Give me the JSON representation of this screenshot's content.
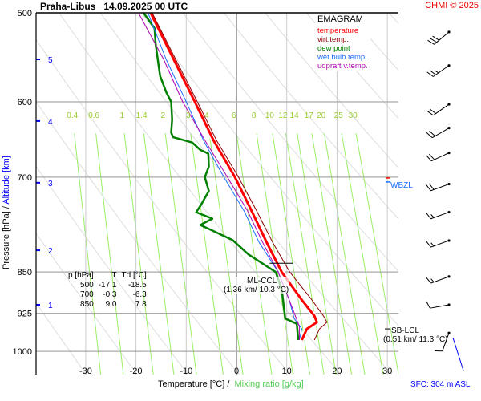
{
  "header": {
    "station": "Praha-Libus",
    "datetime": "14.09.2025 00 UTC",
    "credit": "CHMI © 2025"
  },
  "legend": {
    "title": "EMAGRAM",
    "items": [
      {
        "label": "temperature",
        "color": "#ff0000"
      },
      {
        "label": "virt.temp.",
        "color": "#8b0000"
      },
      {
        "label": "dew point",
        "color": "#008000"
      },
      {
        "label": "wet bulb temp.",
        "color": "#1e6fff"
      },
      {
        "label": "udpraft v.temp.",
        "color": "#b000b0"
      }
    ]
  },
  "axes": {
    "ylabel_pressure": "Pressure [hPa]",
    "ylabel_sep": " / ",
    "ylabel_altitude": "Altitude [km]",
    "xlabel_temp": "Temperature [°C]",
    "xlabel_sep": " / ",
    "xlabel_mix": "Mixing ratio [g/kg]",
    "surface": "SFC: 304 m ASL"
  },
  "table": {
    "headers": [
      "p [hPa]",
      "T",
      "Td [°C]"
    ],
    "rows": [
      [
        "500",
        "-17.1",
        "-18.5"
      ],
      [
        "700",
        "-0.3",
        "-6.3"
      ],
      [
        "850",
        "9.0",
        "7.8"
      ]
    ]
  },
  "annotations": {
    "ml_ccl": "ML-CCL",
    "ml_ccl_val": "(1.36 km/ 10.3 °C)",
    "sb_lcl": "SB-LCL",
    "sb_lcl_val": "(0.51 km/ 11.3 °C)",
    "wbzl": "WBZL"
  },
  "chart_data": {
    "type": "line",
    "title": "EMAGRAM",
    "xlabel": "Temperature [°C] / Mixing ratio [g/kg]",
    "ylabel": "Pressure [hPa] / Altitude [km]",
    "xlim": [
      -40,
      32
    ],
    "ylim": [
      1049,
      500
    ],
    "y_scale": "log",
    "grid": true,
    "x_ticks": [
      -30,
      -20,
      -10,
      0,
      10,
      20,
      30
    ],
    "y_ticks": [
      500,
      600,
      700,
      850,
      925,
      1000
    ],
    "altitude_ticks_km": [
      {
        "km": "1",
        "p": 909
      },
      {
        "km": "2",
        "p": 813
      },
      {
        "km": "3",
        "p": 708
      },
      {
        "km": "4",
        "p": 624
      },
      {
        "km": "5",
        "p": 550
      }
    ],
    "mixing_ratio_labels": [
      "0.4",
      "0.6",
      "1",
      "1.4",
      "2",
      "3",
      "4",
      "6",
      "8",
      "10",
      "12",
      "14",
      "17",
      "20",
      "25",
      "30"
    ],
    "series": [
      {
        "name": "temperature",
        "color": "#ff0000",
        "points": [
          [
            500,
            -17.1
          ],
          [
            550,
            -12.5
          ],
          [
            600,
            -8.3
          ],
          [
            650,
            -4.5
          ],
          [
            700,
            -0.3
          ],
          [
            750,
            3.0
          ],
          [
            800,
            6.0
          ],
          [
            850,
            9.0
          ],
          [
            900,
            13.0
          ],
          [
            930,
            15.5
          ],
          [
            942,
            16.0
          ],
          [
            955,
            14.0
          ],
          [
            977,
            13.0
          ]
        ]
      },
      {
        "name": "virt.temp.",
        "color": "#8b0000",
        "points": [
          [
            500,
            -16.8
          ],
          [
            550,
            -12.1
          ],
          [
            600,
            -7.8
          ],
          [
            650,
            -3.9
          ],
          [
            700,
            0.4
          ],
          [
            750,
            4.0
          ],
          [
            800,
            7.2
          ],
          [
            850,
            10.6
          ],
          [
            900,
            15.0
          ],
          [
            930,
            17.3
          ],
          [
            942,
            18.0
          ],
          [
            955,
            16.5
          ],
          [
            977,
            15.5
          ]
        ]
      },
      {
        "name": "dew point",
        "color": "#008000",
        "points": [
          [
            500,
            -18.5
          ],
          [
            516,
            -16.3
          ],
          [
            533,
            -16.1
          ],
          [
            569,
            -15.2
          ],
          [
            588,
            -14.0
          ],
          [
            600,
            -13.0
          ],
          [
            622,
            -12.8
          ],
          [
            639,
            -13.0
          ],
          [
            645,
            -12.6
          ],
          [
            652,
            -8.8
          ],
          [
            662,
            -7.2
          ],
          [
            667,
            -5.6
          ],
          [
            685,
            -5.5
          ],
          [
            700,
            -6.3
          ],
          [
            720,
            -5.5
          ],
          [
            740,
            -7.0
          ],
          [
            752,
            -8.0
          ],
          [
            762,
            -4.8
          ],
          [
            772,
            -7.2
          ],
          [
            796,
            -0.8
          ],
          [
            820,
            2.4
          ],
          [
            850,
            7.8
          ],
          [
            880,
            9.0
          ],
          [
            935,
            9.7
          ],
          [
            945,
            12.0
          ],
          [
            977,
            12.3
          ]
        ]
      },
      {
        "name": "wet bulb temp.",
        "color": "#1e6fff",
        "points": [
          [
            500,
            -17.6
          ],
          [
            550,
            -14.0
          ],
          [
            600,
            -10.0
          ],
          [
            650,
            -6.5
          ],
          [
            700,
            -2.5
          ],
          [
            750,
            1.5
          ],
          [
            800,
            4.5
          ],
          [
            850,
            8.3
          ],
          [
            900,
            10.5
          ],
          [
            935,
            11.5
          ],
          [
            955,
            13.0
          ],
          [
            977,
            12.5
          ]
        ]
      },
      {
        "name": "udpraft v.temp.",
        "color": "#b000b0",
        "points": [
          [
            500,
            -19.5
          ],
          [
            550,
            -14.5
          ],
          [
            600,
            -10.7
          ],
          [
            650,
            -6.2
          ],
          [
            700,
            -1.8
          ],
          [
            750,
            2.2
          ],
          [
            800,
            5.2
          ],
          [
            850,
            8.3
          ],
          [
            900,
            10.5
          ],
          [
            950,
            12.5
          ],
          [
            977,
            12.5
          ]
        ]
      }
    ],
    "wind_barbs": [
      {
        "p": 520,
        "dir": 230,
        "kt": 30
      },
      {
        "p": 557,
        "dir": 235,
        "kt": 25
      },
      {
        "p": 603,
        "dir": 235,
        "kt": 20
      },
      {
        "p": 633,
        "dir": 240,
        "kt": 20
      },
      {
        "p": 666,
        "dir": 245,
        "kt": 20
      },
      {
        "p": 710,
        "dir": 250,
        "kt": 20
      },
      {
        "p": 752,
        "dir": 250,
        "kt": 15
      },
      {
        "p": 797,
        "dir": 250,
        "kt": 15
      },
      {
        "p": 858,
        "dir": 250,
        "kt": 15
      },
      {
        "p": 909,
        "dir": 260,
        "kt": 10
      },
      {
        "p": 963,
        "dir": 200,
        "kt": 10
      }
    ]
  }
}
